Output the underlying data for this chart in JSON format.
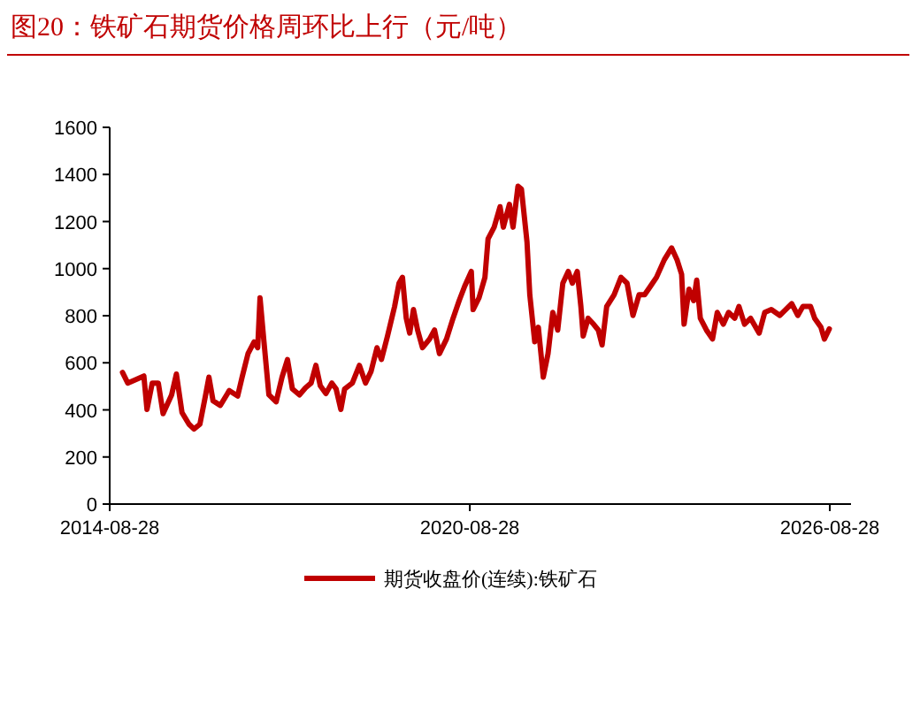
{
  "chart_data": {
    "type": "line",
    "title": "图20：铁矿石期货价格周环比上行（元/吨）",
    "x": [
      "2014-11-14",
      "2014-12-16",
      "2015-01-28",
      "2015-03-24",
      "2015-04-12",
      "2015-05-14",
      "2015-06-20",
      "2015-07-19",
      "2015-09-09",
      "2015-10-08",
      "2015-11-11",
      "2015-12-24",
      "2016-01-23",
      "2016-02-28",
      "2016-04-01",
      "2016-04-23",
      "2016-05-18",
      "2016-07-01",
      "2016-08-25",
      "2016-10-15",
      "2016-11-11",
      "2016-12-17",
      "2017-01-23",
      "2017-02-14",
      "2017-02-28",
      "2017-03-24",
      "2017-04-23",
      "2017-06-06",
      "2017-07-12",
      "2017-08-14",
      "2017-09-13",
      "2017-10-26",
      "2017-12-02",
      "2018-01-05",
      "2018-02-03",
      "2018-03-02",
      "2018-04-05",
      "2018-05-11",
      "2018-06-06",
      "2018-07-05",
      "2018-07-28",
      "2018-09-13",
      "2018-10-26",
      "2018-12-02",
      "2019-01-05",
      "2019-02-10",
      "2019-03-09",
      "2019-04-15",
      "2019-05-28",
      "2019-06-24",
      "2019-07-15",
      "2019-08-07",
      "2019-08-28",
      "2019-09-20",
      "2019-10-15",
      "2019-11-14",
      "2019-12-27",
      "2020-01-26",
      "2020-02-25",
      "2020-04-08",
      "2020-05-18",
      "2020-06-24",
      "2020-07-28",
      "2020-09-06",
      "2020-09-17",
      "2020-10-23",
      "2020-11-28",
      "2020-12-17",
      "2021-01-23",
      "2021-02-28",
      "2021-03-20",
      "2021-04-26",
      "2021-05-18",
      "2021-06-17",
      "2021-07-08",
      "2021-08-11",
      "2021-08-28",
      "2021-09-27",
      "2021-10-19",
      "2021-11-18",
      "2021-12-17",
      "2022-01-15",
      "2022-02-14",
      "2022-03-17",
      "2022-04-19",
      "2022-05-14",
      "2022-06-13",
      "2022-07-05",
      "2022-07-19",
      "2022-08-18",
      "2022-09-20",
      "2022-10-19",
      "2022-11-11",
      "2022-12-09",
      "2023-01-23",
      "2023-03-06",
      "2023-04-12",
      "2023-05-18",
      "2023-06-24",
      "2023-07-28",
      "2023-09-02",
      "2023-10-08",
      "2023-11-25",
      "2024-01-08",
      "2024-02-10",
      "2024-03-09",
      "2024-03-24",
      "2024-04-23",
      "2024-05-21",
      "2024-06-09",
      "2024-07-01",
      "2024-08-07",
      "2024-09-13",
      "2024-10-12",
      "2024-11-18",
      "2024-12-20",
      "2025-01-26",
      "2025-02-21",
      "2025-03-27",
      "2025-05-03",
      "2025-06-24",
      "2025-07-28",
      "2025-09-06",
      "2025-10-28",
      "2026-01-08",
      "2026-02-14",
      "2026-03-17",
      "2026-05-03",
      "2026-05-28",
      "2026-07-05",
      "2026-07-26",
      "2026-08-25"
    ],
    "series": [
      {
        "name": "期货收盘价(连续):铁矿石",
        "color": "#c00000",
        "values": [
          559,
          514,
          527,
          544,
          402,
          514,
          514,
          384,
          464,
          552,
          389,
          339,
          319,
          339,
          457,
          539,
          439,
          419,
          482,
          459,
          539,
          639,
          689,
          664,
          876,
          689,
          464,
          434,
          539,
          614,
          489,
          464,
          494,
          514,
          589,
          502,
          469,
          514,
          489,
          402,
          489,
          514,
          589,
          514,
          564,
          664,
          614,
          714,
          839,
          938,
          963,
          789,
          726,
          826,
          739,
          664,
          701,
          739,
          639,
          701,
          789,
          864,
          926,
          988,
          826,
          876,
          963,
          1126,
          1176,
          1263,
          1176,
          1273,
          1176,
          1350,
          1338,
          1113,
          889,
          689,
          751,
          539,
          639,
          814,
          739,
          938,
          988,
          938,
          988,
          839,
          714,
          789,
          764,
          739,
          676,
          839,
          889,
          963,
          938,
          801,
          889,
          889,
          926,
          963,
          1038,
          1088,
          1038,
          976,
          764,
          913,
          864,
          951,
          789,
          739,
          701,
          814,
          764,
          814,
          789,
          839,
          764,
          789,
          726,
          814,
          826,
          801,
          851,
          801,
          839,
          839,
          789,
          751,
          701,
          744
        ]
      }
    ],
    "xlim": [
      "2014-08-28",
      "2027-01-04"
    ],
    "xticks": [
      {
        "value": "2014-08-28",
        "label": "2014-08-28"
      },
      {
        "value": "2020-08-28",
        "label": "2020-08-28"
      },
      {
        "value": "2026-08-28",
        "label": "2026-08-28"
      }
    ],
    "ylim": [
      0,
      1600
    ],
    "yticks": [
      0,
      200,
      400,
      600,
      800,
      1000,
      1200,
      1400,
      1600
    ],
    "legend": "bottom"
  }
}
